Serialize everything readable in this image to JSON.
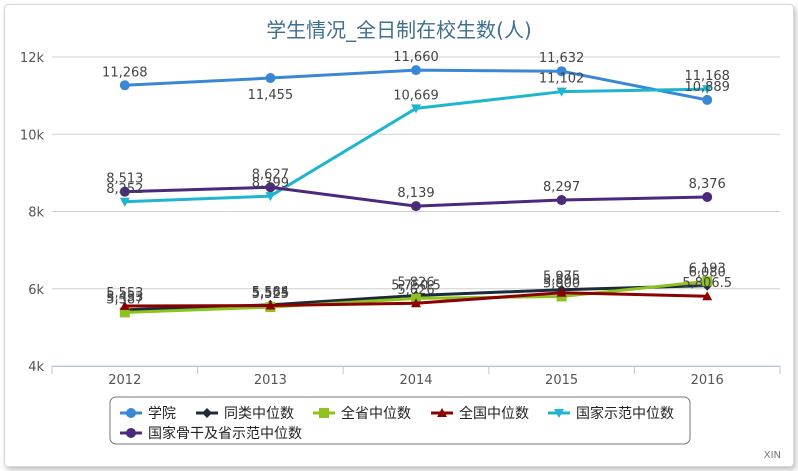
{
  "chart_data": {
    "type": "line",
    "title": "学生情况_全日制在校生数(人)",
    "xlabel": "",
    "ylabel": "",
    "categories": [
      "2012",
      "2013",
      "2014",
      "2015",
      "2016"
    ],
    "ylim": [
      4000,
      12000
    ],
    "yticks": [
      4000,
      6000,
      8000,
      10000,
      12000
    ],
    "ytick_labels": [
      "4k",
      "6k",
      "8k",
      "10k",
      "12k"
    ],
    "grid": true,
    "legend_position": "bottom",
    "series": [
      {
        "name": "学院",
        "color": "#3a87d6",
        "marker": "circle",
        "values": [
          11268,
          11455,
          11660,
          11632,
          10889
        ],
        "labels": [
          "11,268",
          "11,455",
          "11,660",
          "11,632",
          "10,889"
        ]
      },
      {
        "name": "同类中位数",
        "color": "#1c2b3a",
        "marker": "diamond",
        "values": [
          5453,
          5584,
          5826,
          5975,
          6080
        ],
        "labels": [
          "5,453",
          "5,584",
          "5,826",
          "5,975",
          "6,080"
        ]
      },
      {
        "name": "全省中位数",
        "color": "#8dc21f",
        "marker": "square",
        "values": [
          5387,
          5525,
          5750.5,
          5800,
          6193
        ],
        "labels": [
          "5,387",
          "5,525",
          "5,750.5",
          "5,800",
          "6,193"
        ]
      },
      {
        "name": "全国中位数",
        "color": "#8b0000",
        "marker": "triangle",
        "values": [
          5553,
          5565,
          5626,
          5895,
          5806.5
        ],
        "labels": [
          "5,553",
          "5,565",
          "5,626",
          "5,895",
          "5,806.5"
        ]
      },
      {
        "name": "国家示范中位数",
        "color": "#1fb5d0",
        "marker": "triangle-down",
        "values": [
          8252,
          8399,
          10669,
          11102,
          11168
        ],
        "labels": [
          "8,252",
          "8,399",
          "10,669",
          "11,102",
          "11,168"
        ]
      },
      {
        "name": "国家骨干及省示范中位数",
        "color": "#4b2a7b",
        "marker": "circle",
        "values": [
          8513,
          8627,
          8139,
          8297,
          8376
        ],
        "labels": [
          "8,513",
          "8,627",
          "8,139",
          "8,297",
          "8,376"
        ]
      }
    ],
    "credit": "XIN"
  }
}
